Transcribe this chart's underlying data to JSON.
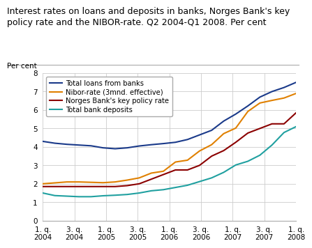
{
  "title": "Interest rates on loans and deposits in banks, Norges Bank's key\npolicy rate and the NIBOR-rate. Q2 2004-Q1 2008. Per cent",
  "per_cent_label": "Per cent",
  "ylim": [
    0,
    8
  ],
  "yticks": [
    0,
    1,
    2,
    3,
    4,
    5,
    6,
    7,
    8
  ],
  "x_labels": [
    "1. q.\n2004",
    "3. q.\n2004",
    "1. q.\n2005",
    "3. q.\n2005",
    "1. q.\n2006",
    "3. q.\n2006",
    "1. q.\n2007",
    "3. q.\n2007",
    "1. q.\n2008"
  ],
  "series": {
    "total_loans": {
      "label": "Total loans from banks",
      "color": "#1a3a8a",
      "data": [
        4.3,
        4.2,
        4.14,
        4.1,
        4.06,
        3.95,
        3.9,
        3.95,
        4.05,
        4.12,
        4.18,
        4.25,
        4.4,
        4.65,
        4.9,
        5.4,
        5.78,
        6.22,
        6.7,
        7.0,
        7.22,
        7.5
      ]
    },
    "nibor": {
      "label": "Nibor-rate (3mnd. effective)",
      "color": "#e08000",
      "data": [
        2.0,
        2.05,
        2.1,
        2.1,
        2.08,
        2.06,
        2.1,
        2.2,
        2.32,
        2.58,
        2.68,
        3.18,
        3.28,
        3.78,
        4.12,
        4.72,
        5.02,
        5.92,
        6.38,
        6.52,
        6.65,
        6.9
      ]
    },
    "norges_bank": {
      "label": "Norges Bank's key policy rate",
      "color": "#8b0000",
      "data": [
        1.85,
        1.85,
        1.85,
        1.85,
        1.85,
        1.85,
        1.85,
        1.9,
        2.0,
        2.25,
        2.5,
        2.75,
        2.75,
        3.0,
        3.5,
        3.8,
        4.25,
        4.75,
        5.0,
        5.25,
        5.25,
        5.85
      ]
    },
    "deposits": {
      "label": "Total bank deposits",
      "color": "#20a0a0",
      "data": [
        1.5,
        1.36,
        1.33,
        1.3,
        1.3,
        1.35,
        1.38,
        1.42,
        1.5,
        1.62,
        1.68,
        1.8,
        1.92,
        2.12,
        2.32,
        2.62,
        3.02,
        3.22,
        3.55,
        4.1,
        4.78,
        5.1
      ]
    }
  },
  "n_points": 22,
  "background_color": "#ffffff",
  "grid_color": "#cccccc",
  "title_fontsize": 9.0,
  "axis_fontsize": 7.5,
  "legend_fontsize": 7.2
}
